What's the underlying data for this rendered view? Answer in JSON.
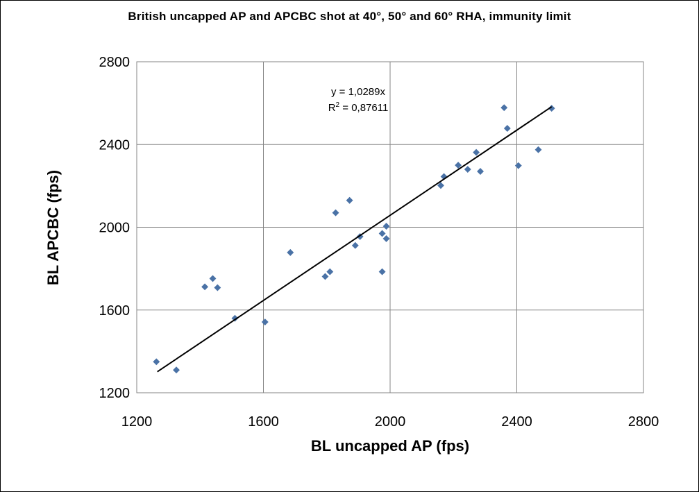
{
  "chart_data": {
    "type": "scatter",
    "title": "British uncapped AP and APCBC shot at 40°, 50° and 60° RHA, immunity limit",
    "xlabel": "BL uncapped AP (fps)",
    "ylabel": "BL APCBC (fps)",
    "xlim": [
      1200,
      2800
    ],
    "ylim": [
      1200,
      2800
    ],
    "xticks": [
      1200,
      1600,
      2000,
      2400,
      2800
    ],
    "yticks": [
      1200,
      1600,
      2000,
      2400,
      2800
    ],
    "grid": true,
    "legend": "none",
    "marker_color": "#4a72a6",
    "series": [
      {
        "points": [
          [
            1262,
            1350
          ],
          [
            1325,
            1310
          ],
          [
            1415,
            1712
          ],
          [
            1440,
            1752
          ],
          [
            1455,
            1708
          ],
          [
            1510,
            1560
          ],
          [
            1605,
            1542
          ],
          [
            1685,
            1878
          ],
          [
            1795,
            1762
          ],
          [
            1810,
            1785
          ],
          [
            1828,
            2070
          ],
          [
            1872,
            2130
          ],
          [
            1890,
            1912
          ],
          [
            1905,
            1955
          ],
          [
            1975,
            1785
          ],
          [
            1975,
            1970
          ],
          [
            1988,
            1945
          ],
          [
            1988,
            2005
          ],
          [
            2160,
            2202
          ],
          [
            2170,
            2245
          ],
          [
            2215,
            2300
          ],
          [
            2245,
            2280
          ],
          [
            2272,
            2362
          ],
          [
            2285,
            2270
          ],
          [
            2360,
            2578
          ],
          [
            2370,
            2478
          ],
          [
            2405,
            2298
          ],
          [
            2468,
            2375
          ],
          [
            2510,
            2575
          ]
        ]
      }
    ],
    "trendline": {
      "slope": 1.0289,
      "x_range": [
        1265,
        2510
      ],
      "equation_label": "y = 1,0289x",
      "r2_prefix": "R",
      "r2_exp": "2",
      "r2_suffix": " = 0,87611"
    }
  }
}
